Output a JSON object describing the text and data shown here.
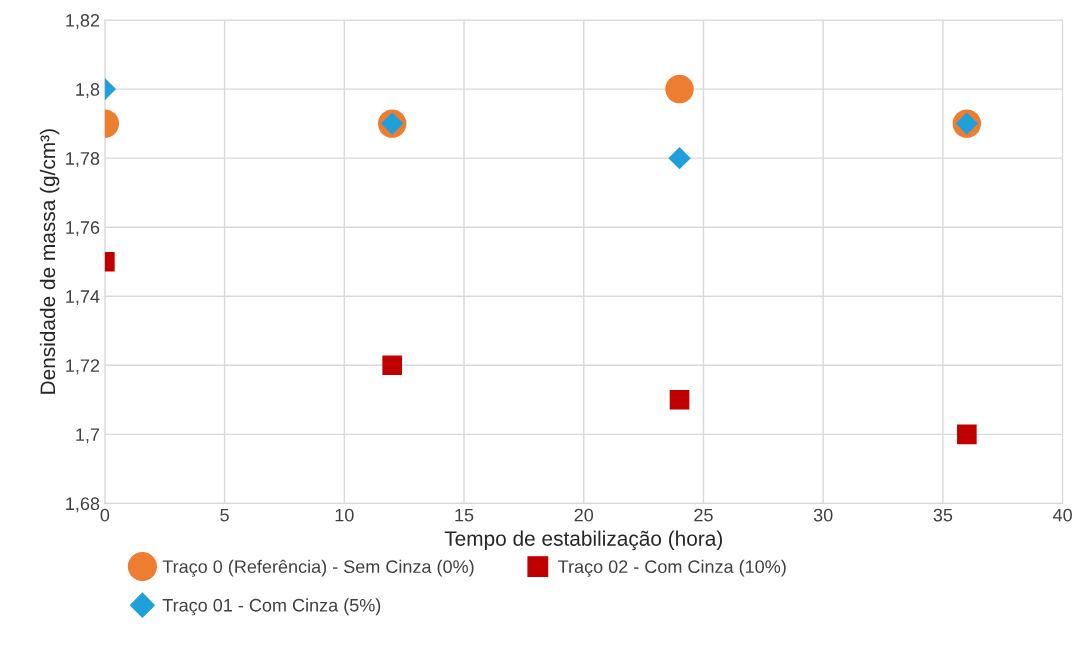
{
  "chart_data": {
    "type": "scatter",
    "xlabel": "Tempo de estabilização (hora)",
    "ylabel": "Densidade de massa (g/cm³)",
    "xlim": [
      0,
      40
    ],
    "xticks": [
      0,
      5,
      10,
      15,
      20,
      25,
      30,
      35,
      40
    ],
    "ylim": [
      1.68,
      1.82
    ],
    "yticks": [
      {
        "value": 1.68,
        "label": "1,68"
      },
      {
        "value": 1.7,
        "label": "1,7"
      },
      {
        "value": 1.72,
        "label": "1,72"
      },
      {
        "value": 1.74,
        "label": "1,74"
      },
      {
        "value": 1.76,
        "label": "1,76"
      },
      {
        "value": 1.78,
        "label": "1,78"
      },
      {
        "value": 1.8,
        "label": "1,8"
      },
      {
        "value": 1.82,
        "label": "1,82"
      }
    ],
    "grid": true,
    "legend": "bottom",
    "series": [
      {
        "name": "Traço 0 (Referência) - Sem Cinza (0%)",
        "color": "#ed7d31",
        "marker": "circle",
        "x": [
          0,
          12,
          24,
          36
        ],
        "values": [
          1.79,
          1.79,
          1.8,
          1.79
        ]
      },
      {
        "name": "Traço 01 - Com Cinza (5%)",
        "color": "#1fa0db",
        "marker": "diamond",
        "x": [
          0,
          12,
          24,
          36
        ],
        "values": [
          1.8,
          1.79,
          1.78,
          1.79
        ]
      },
      {
        "name": "Traço 02 - Com Cinza (10%)",
        "color": "#c00000",
        "marker": "square",
        "x": [
          0,
          12,
          24,
          36
        ],
        "values": [
          1.75,
          1.72,
          1.71,
          1.7
        ]
      }
    ]
  }
}
